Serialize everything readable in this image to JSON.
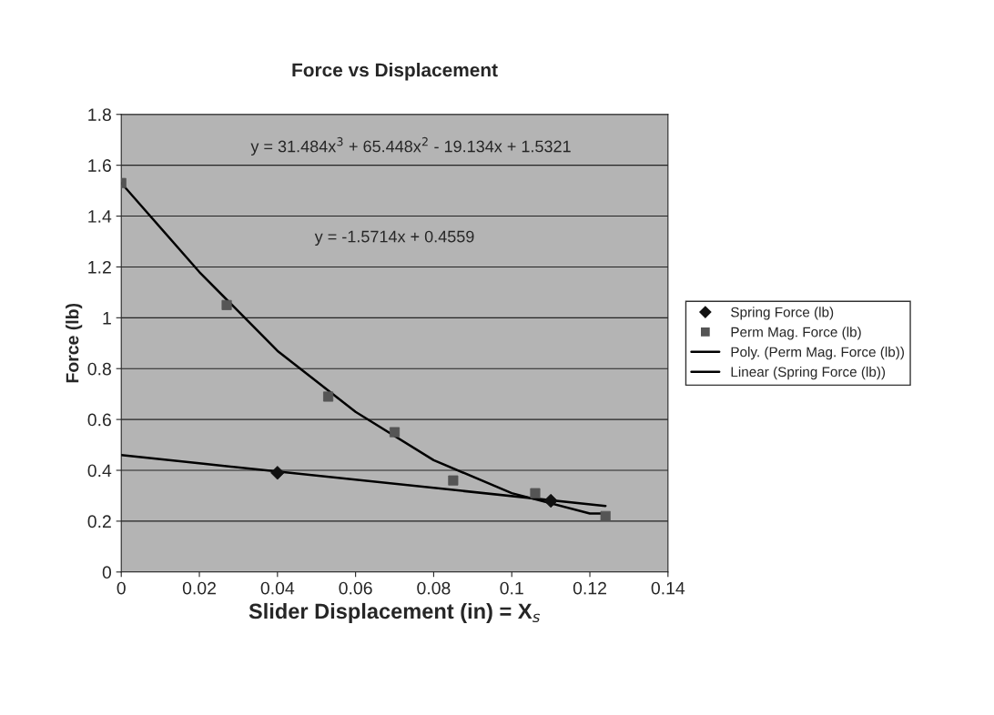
{
  "chart_data": {
    "type": "scatter",
    "title": "Force vs Displacement",
    "xlabel": "Slider Displacement (in) = X$_{s}$",
    "ylabel": "Force (lb)",
    "series": [
      {
        "name": "Spring Force (lb)",
        "marker": "diamond",
        "color": "#111111",
        "x": [
          0.04,
          0.11
        ],
        "values": [
          0.39,
          0.28
        ]
      },
      {
        "name": "Perm Mag. Force (lb)",
        "marker": "square",
        "color": "#555555",
        "x": [
          0,
          0.027,
          0.053,
          0.07,
          0.085,
          0.106,
          0.124
        ],
        "values": [
          1.53,
          1.05,
          0.69,
          0.55,
          0.36,
          0.31,
          0.22
        ]
      },
      {
        "name": "Poly. (Perm Mag. Force (lb))",
        "type": "line",
        "color": "#000000",
        "x": [
          0,
          0.02,
          0.04,
          0.06,
          0.08,
          0.1,
          0.12,
          0.124
        ],
        "values": [
          1.53,
          1.18,
          0.87,
          0.63,
          0.44,
          0.31,
          0.23,
          0.23
        ]
      },
      {
        "name": "Linear (Spring Force (lb))",
        "type": "line",
        "color": "#000000",
        "x": [
          0,
          0.124
        ],
        "values": [
          0.46,
          0.26
        ]
      }
    ],
    "annotations": [
      "y = 31.484x$^{3}$ + 65.448x$^{2}$ - 19.134x + 1.5321",
      "y = -1.5714x + 0.4559"
    ],
    "xlim": [
      0,
      0.14
    ],
    "xticks": [
      0,
      0.02,
      0.04,
      0.06,
      0.08,
      0.1,
      0.12,
      0.14
    ],
    "ylim": [
      0,
      1.8
    ],
    "yticks": [
      0,
      0.2,
      0.4,
      0.6,
      0.8,
      1,
      1.2,
      1.4,
      1.6,
      1.8
    ],
    "grid": "y",
    "legend": "right",
    "line_style": "solid"
  }
}
